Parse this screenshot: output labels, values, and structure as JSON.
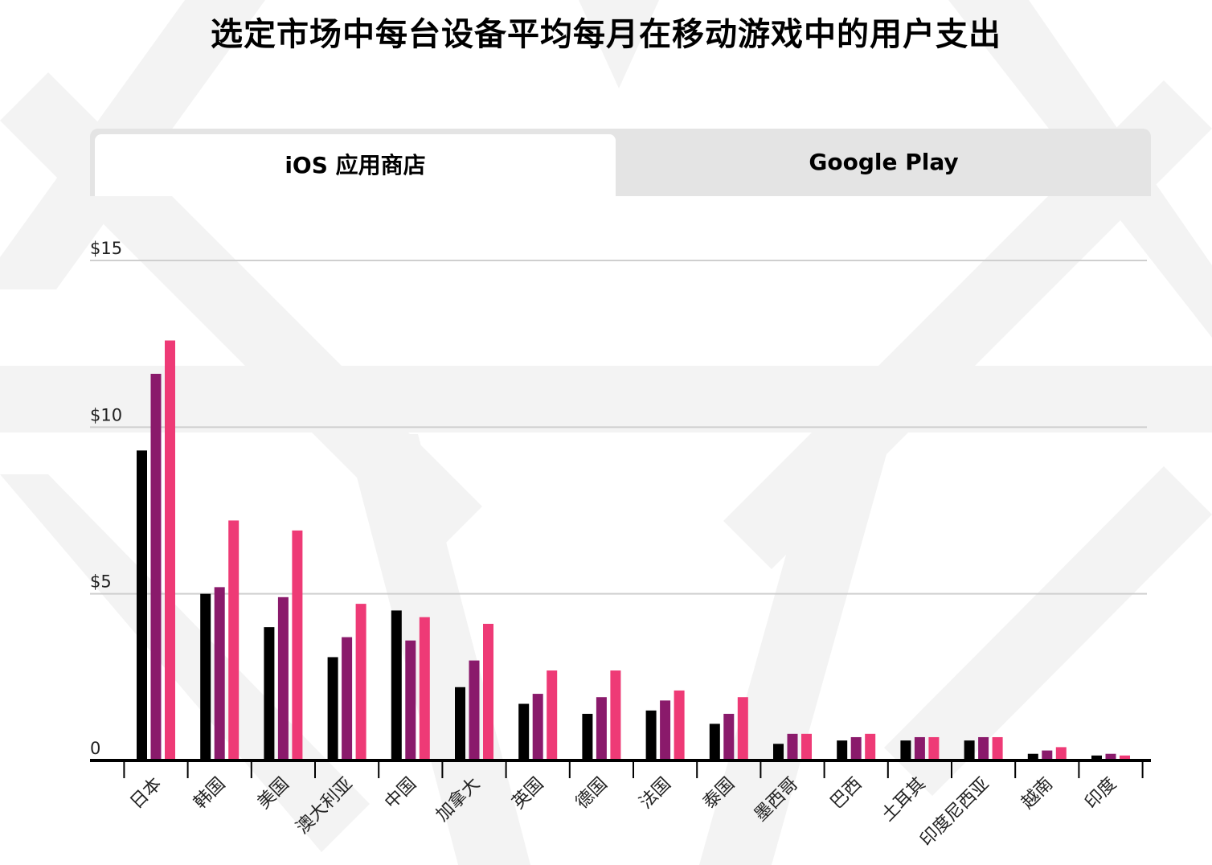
{
  "title": "选定市场中每台设备平均每月在移动游戏中的用户支出",
  "tabs": [
    {
      "label": "iOS 应用商店",
      "active": true
    },
    {
      "label": "Google Play",
      "active": false
    }
  ],
  "colors": {
    "background_pattern": "#f3f3f3",
    "tab_bar": "#e4e4e4",
    "series": [
      "#000000",
      "#8a1a6b",
      "#ee3a76"
    ]
  },
  "chart_data": {
    "type": "bar",
    "categories": [
      "日本",
      "韩国",
      "美国",
      "澳大利亚",
      "中国",
      "加拿大",
      "英国",
      "德国",
      "法国",
      "泰国",
      "墨西哥",
      "巴西",
      "土耳其",
      "印度尼西亚",
      "越南",
      "印度"
    ],
    "series": [
      {
        "values": [
          9.3,
          5.0,
          4.0,
          3.1,
          4.5,
          2.2,
          1.7,
          1.4,
          1.5,
          1.1,
          0.5,
          0.6,
          0.6,
          0.6,
          0.2,
          0.15
        ]
      },
      {
        "values": [
          11.6,
          5.2,
          4.9,
          3.7,
          3.6,
          3.0,
          2.0,
          1.9,
          1.8,
          1.4,
          0.8,
          0.7,
          0.7,
          0.7,
          0.3,
          0.2
        ]
      },
      {
        "values": [
          12.6,
          7.2,
          6.9,
          4.7,
          4.3,
          4.1,
          2.7,
          2.7,
          2.1,
          1.9,
          0.8,
          0.8,
          0.7,
          0.7,
          0.4,
          0.15
        ]
      }
    ],
    "ylim": [
      0,
      15
    ],
    "yticks": [
      0,
      5,
      10,
      15
    ],
    "ytick_labels": [
      "0",
      "$5",
      "$10",
      "$15"
    ],
    "grid": true,
    "legend": "none"
  }
}
